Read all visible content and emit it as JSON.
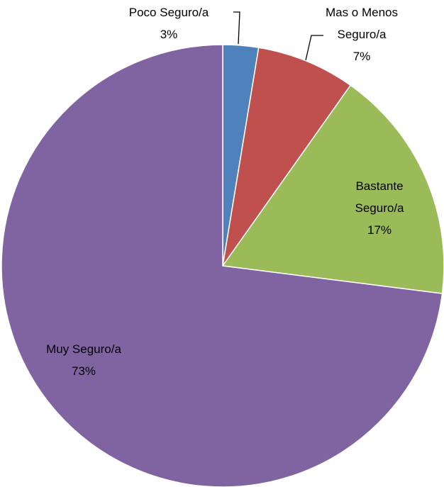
{
  "chart_data": {
    "type": "pie",
    "categories": [
      "Poco Seguro/a",
      "Mas o Menos Seguro/a",
      "Bastante Seguro/a",
      "Muy Seguro/a"
    ],
    "values": [
      2.6,
      7.2,
      17.2,
      73.0
    ],
    "value_labels": [
      "3%",
      "7%",
      "17%",
      "73%"
    ],
    "colors": [
      "#4f81bd",
      "#c0504d",
      "#9bbb59",
      "#8064a2"
    ]
  }
}
